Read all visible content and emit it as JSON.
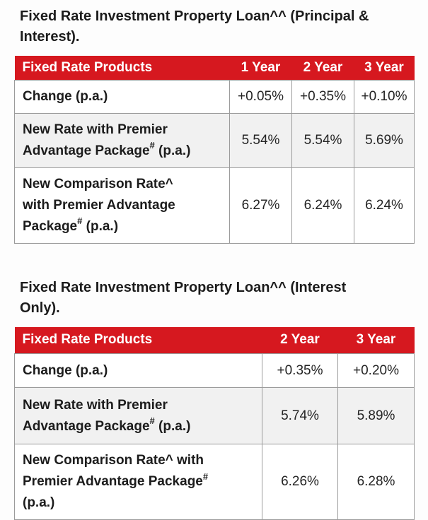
{
  "colors": {
    "page_bg": "#fdfdfd",
    "header_bg": "#d6181f",
    "header_text": "#ffffff",
    "row_bg": "#ffffff",
    "row_alt_bg": "#f1f1f1",
    "border": "#9b9b9b",
    "title_text": "#1c1c1c",
    "label_text": "#1c1c1c",
    "value_text": "#242424"
  },
  "tables": [
    {
      "title_lines": [
        "Fixed Rate Investment Property Loan^^ (Principal &",
        "Interest)."
      ],
      "header": {
        "product_col": "Fixed Rate Products",
        "year_cols": [
          "1 Year",
          "2 Year",
          "3 Year"
        ]
      },
      "rows": [
        {
          "label_lines": [
            {
              "text": "Change (p.a.)"
            }
          ],
          "values": [
            "+0.05%",
            "+0.35%",
            "+0.10%"
          ]
        },
        {
          "label_lines": [
            {
              "text": "New Rate with Premier"
            },
            {
              "text": "Advantage Package",
              "sup": "#",
              "tail": " (p.a.)"
            }
          ],
          "values": [
            "5.54%",
            "5.54%",
            "5.69%"
          ]
        },
        {
          "label_lines": [
            {
              "text": "New Comparison Rate^"
            },
            {
              "text": "with Premier Advantage"
            },
            {
              "text": "Package",
              "sup": "#",
              "tail": " (p.a.)"
            }
          ],
          "values": [
            "6.27%",
            "6.24%",
            "6.24%"
          ]
        }
      ]
    },
    {
      "title_lines": [
        "Fixed Rate Investment Property Loan^^ (Interest",
        "Only)."
      ],
      "header": {
        "product_col": "Fixed Rate Products",
        "year_cols": [
          "2 Year",
          "3 Year"
        ]
      },
      "rows": [
        {
          "label_lines": [
            {
              "text": "Change (p.a.)"
            }
          ],
          "values": [
            "+0.35%",
            "+0.20%"
          ]
        },
        {
          "label_lines": [
            {
              "text": "New Rate with Premier"
            },
            {
              "text": "Advantage Package",
              "sup": "#",
              "tail": " (p.a.)"
            }
          ],
          "values": [
            "5.74%",
            "5.89%"
          ]
        },
        {
          "label_lines": [
            {
              "text": "New Comparison Rate^ with"
            },
            {
              "text": "Premier Advantage Package",
              "sup": "#"
            },
            {
              "text": "(p.a.)"
            }
          ],
          "values": [
            "6.26%",
            "6.28%"
          ]
        }
      ]
    }
  ]
}
